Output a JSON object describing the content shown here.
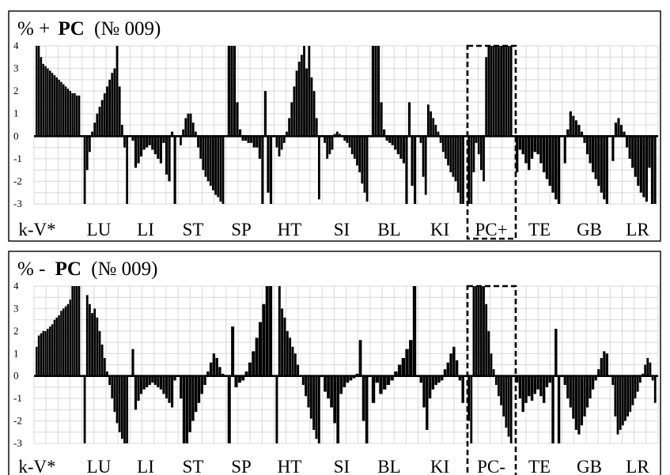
{
  "charts": [
    {
      "id": "top",
      "title": {
        "prefix": "% ",
        "sign": "+",
        "bold": "PC",
        "suffix": "(№ 009)"
      },
      "highlight_category": "PC+",
      "chart_data": {
        "type": "bar",
        "ylim": [
          -3,
          4
        ],
        "yticks": [
          "4",
          "3",
          "2",
          "1",
          "0",
          "-1",
          "-2",
          "-3"
        ],
        "categories": [
          "k-V*",
          "LU",
          "LI",
          "ST",
          "SP",
          "HT",
          "SI",
          "BL",
          "KI",
          "PC+",
          "TE",
          "GB",
          "LR"
        ],
        "series": [
          {
            "values": [
              [
                4,
                4,
                3.5,
                3.2,
                3.1,
                3.0,
                2.9,
                2.8,
                2.7,
                2.6,
                2.5,
                2.4,
                2.3,
                2.2,
                2.1,
                2.0,
                1.9,
                1.9,
                1.8,
                1.8
              ],
              [
                -3,
                -1.5,
                -0.7,
                0.2,
                0.6,
                1.0,
                1.3,
                1.6,
                1.9,
                2.2,
                2.5,
                2.8,
                3.0,
                4,
                2.2,
                0.5,
                -0.5,
                -3
              ],
              [
                -0.2,
                -1.4,
                -1.2,
                -0.9,
                -0.6,
                -0.5,
                -0.4,
                -0.6,
                -0.8,
                -1.0,
                -1.2,
                -0.3,
                -1.7,
                -2.0,
                0.2,
                -3
              ],
              [
                -0.4,
                0.3,
                0.8,
                1.0,
                1.0,
                0.6,
                0.2,
                -0.5,
                -1.0,
                -1.5,
                -1.8,
                -2.0,
                -2.2,
                -2.4,
                -2.6,
                -2.7,
                -2.9,
                -3
              ],
              [
                4,
                4,
                4,
                1.5,
                0.3,
                -0.2,
                -0.2,
                -0.3,
                -0.3,
                -0.5,
                -0.5,
                -1.0,
                -3,
                2.0,
                -2.5,
                -3
              ],
              [
                -0.5,
                -0.9,
                -0.6,
                -0.3,
                0.2,
                0.8,
                1.5,
                2.2,
                2.9,
                3.3,
                3.6,
                4,
                3.0,
                4,
                2.6,
                2.0,
                0.8,
                -2.8
              ],
              [
                -0.3,
                -1.0,
                -0.8,
                -0.6,
                0.1,
                0.2,
                0.1,
                0.0,
                -0.2,
                -0.3,
                -0.5,
                -0.8,
                -1.0,
                -1.3,
                -1.6,
                -2.1,
                -2.5,
                -2.9
              ],
              [
                4,
                4,
                4,
                1.5,
                0.3,
                -0.2,
                -0.3,
                -0.4,
                -0.6,
                -0.8,
                -1.0,
                -1.2,
                -3,
                1.5,
                -2.2,
                -3
              ],
              [
                -0.3,
                -1.8,
                -2.6,
                1.4,
                1.1,
                0.8,
                0.5,
                0.2,
                -0.3,
                -0.7,
                -1.0,
                -1.3,
                -1.6,
                -1.8,
                -2.0,
                -2.5,
                -3,
                -3
              ],
              [
                -3,
                -3,
                -1.6,
                -0.3,
                -0.8,
                -1.5,
                -2.0,
                3.5,
                4,
                4,
                4,
                4,
                4,
                4,
                4,
                4,
                4,
                4
              ],
              [
                -1.6,
                -0.6,
                -0.8,
                -1.2,
                -1.5,
                -1.0,
                -0.7,
                -0.8,
                -1.2,
                -1.6,
                -1.9,
                -2.2,
                -2.5,
                -2.8,
                -3
              ],
              [
                -1.2,
                0.3,
                1.1,
                0.9,
                0.7,
                0.5,
                0.2,
                -0.3,
                -0.8,
                -1.2,
                -1.6,
                -1.9,
                -2.2,
                -2.5,
                -2.8,
                -3
              ],
              [
                -1.1,
                0.6,
                0.8,
                0.5,
                0.2,
                -0.5,
                -1.0,
                -1.4,
                -1.8,
                -2.2,
                -2.5,
                -2.7,
                -2.9,
                -1.4,
                -3,
                -3
              ]
            ]
          }
        ]
      }
    },
    {
      "id": "bottom",
      "title": {
        "prefix": "% ",
        "sign": "-",
        "bold": "PC",
        "suffix": "(№ 009)"
      },
      "highlight_category": "PC-",
      "chart_data": {
        "type": "bar",
        "ylim": [
          -3,
          4
        ],
        "yticks": [
          "4",
          "3",
          "2",
          "1",
          "0",
          "-1",
          "-2",
          "-3"
        ],
        "categories": [
          "k-V*",
          "LU",
          "LI",
          "ST",
          "SP",
          "HT",
          "SI",
          "BL",
          "KI",
          "PC-",
          "TE",
          "GB",
          "LR"
        ],
        "series": [
          {
            "values": [
              [
                1.3,
                1.8,
                1.9,
                2.0,
                2.0,
                2.1,
                2.2,
                2.3,
                2.5,
                2.6,
                2.7,
                2.9,
                3.0,
                3.1,
                3.2,
                3.4,
                4,
                4,
                4,
                4
              ],
              [
                -3,
                3.6,
                3.2,
                2.8,
                3.0,
                2.6,
                2.0,
                1.4,
                0.8,
                0.2,
                -0.4,
                -1.0,
                -1.6,
                -2.1,
                -2.5,
                -2.8,
                -3,
                -3
              ],
              [
                1.2,
                -1.5,
                -1.1,
                -0.8,
                -0.6,
                -0.5,
                -0.4,
                -0.3,
                -0.4,
                -0.5,
                -0.6,
                -0.8,
                -1.0,
                -1.2,
                -1.4,
                -0.2
              ],
              [
                -1.0,
                -3,
                -3,
                -2.5,
                -2.0,
                -1.6,
                -1.2,
                -0.8,
                -0.4,
                0.2,
                0.6,
                1.0,
                0.8,
                0.4,
                0.1
              ],
              [
                -3,
                2.2,
                -0.5,
                -0.3,
                -0.2,
                0.2,
                0.6,
                1.1,
                1.7,
                2.4,
                3.2,
                4,
                4
              ],
              [
                -3,
                4,
                3.0,
                2.6,
                2.0,
                1.7,
                1.3,
                1.0,
                0.5,
                0.0,
                -0.4,
                -0.9,
                -1.4,
                -1.9,
                -2.4,
                -2.8,
                -3
              ],
              [
                -0.7,
                -1.0,
                -1.4,
                -2.1,
                -3,
                -0.8,
                -0.5,
                -0.3,
                -0.2,
                -0.1,
                0.1,
                1.6,
                -2.0,
                -3
              ],
              [
                -1.2,
                -0.3,
                -0.8,
                -0.6,
                -0.4,
                -0.2,
                0.2,
                0.5,
                0.8,
                1.2,
                1.6,
                4
              ],
              [
                -0.3,
                -1.4,
                -2.4,
                -1.0,
                -0.6,
                -0.4,
                -0.3,
                -0.2,
                0.3,
                0.6,
                1.0,
                1.3,
                0.7,
                -0.2,
                -1.2
              ],
              [
                -2.0,
                -3,
                4,
                4,
                4,
                4,
                4,
                3.2,
                2.0,
                1.0,
                0.3,
                -0.4,
                -0.9,
                -1.3,
                -1.8,
                -2.3,
                -2.7,
                -3
              ],
              [
                -0.3,
                -1.0,
                -1.6,
                -1.2,
                -0.9,
                -1.1,
                -0.8,
                -0.6,
                -0.9,
                -1.2,
                -0.5,
                -0.3,
                -3,
                2.1,
                -3
              ],
              [
                -0.4,
                -1.0,
                -1.4,
                -1.9,
                -2.4,
                -2.6,
                -2.2,
                -1.8,
                -1.4,
                -1.0,
                -0.6,
                -0.2,
                0.3,
                0.8,
                1.1,
                1.0
              ],
              [
                -0.4,
                -1.8,
                -2.6,
                -2.4,
                -2.2,
                -2.0,
                -1.8,
                -1.6,
                -1.3,
                -1.0,
                -0.7,
                -0.3,
                0.1,
                0.5,
                0.8,
                0.6,
                -0.2,
                -1.2
              ]
            ]
          }
        ]
      }
    }
  ]
}
